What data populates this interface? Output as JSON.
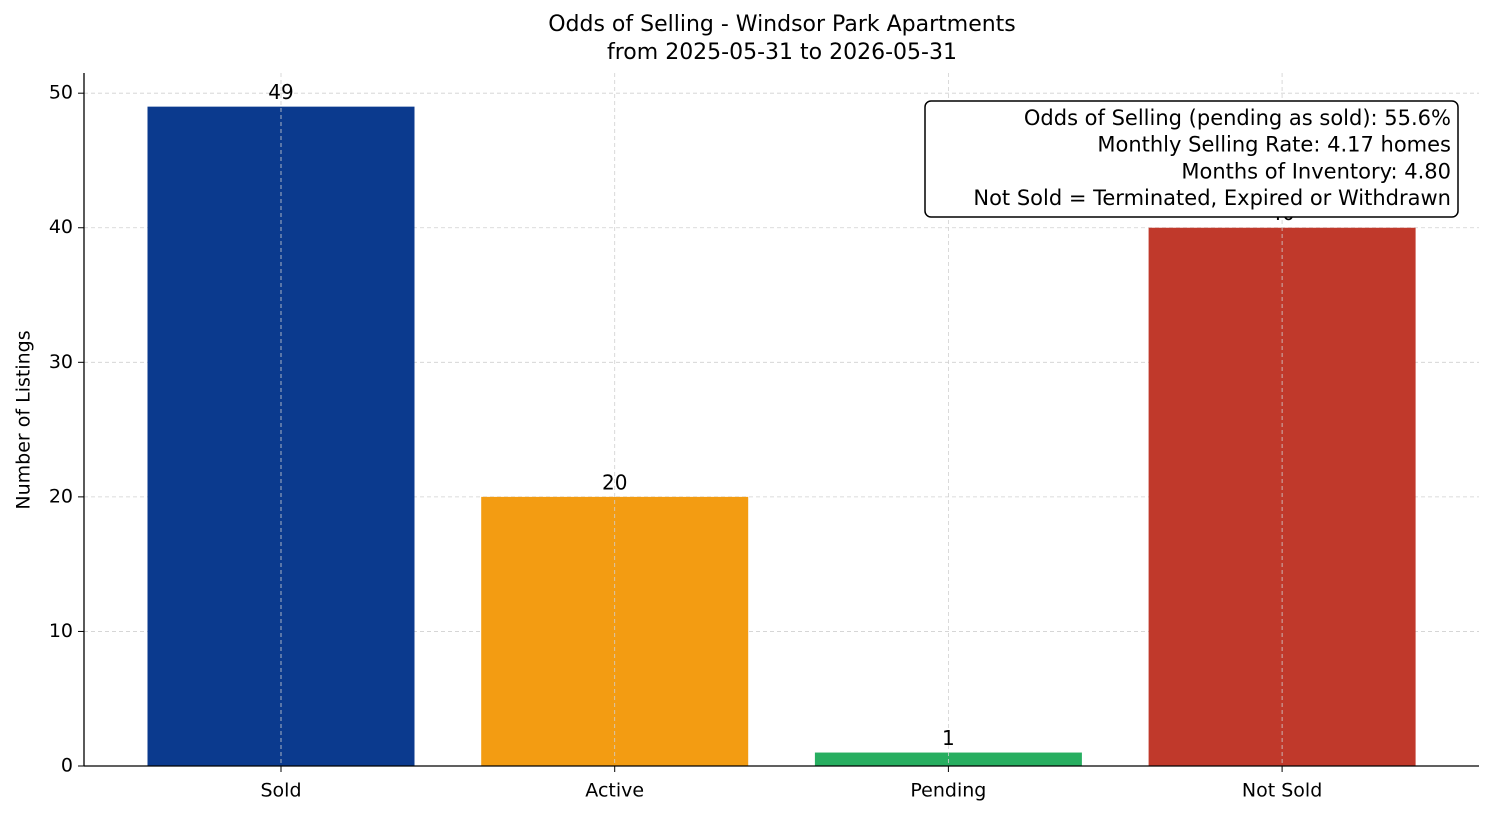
{
  "chart_data": {
    "type": "bar",
    "title": "Odds of Selling - Windsor Park Apartments",
    "subtitle": "from 2025-05-31 to 2026-05-31",
    "y_label": "Number of Listings",
    "categories": [
      "Sold",
      "Active",
      "Pending",
      "Not Sold"
    ],
    "values": [
      49,
      20,
      1,
      40
    ],
    "colors": [
      "#0b3a8e",
      "#f39c12",
      "#27ae60",
      "#c0392b"
    ],
    "ylim": [
      0,
      51.5
    ],
    "yticks": [
      0,
      10,
      20,
      30,
      40,
      50
    ],
    "grid": true,
    "annotation_lines": [
      "Odds of Selling (pending as sold): 55.6%",
      "Monthly Selling Rate: 4.17 homes",
      "Months of Inventory: 4.80",
      "Not Sold = Terminated, Expired or Withdrawn"
    ]
  }
}
